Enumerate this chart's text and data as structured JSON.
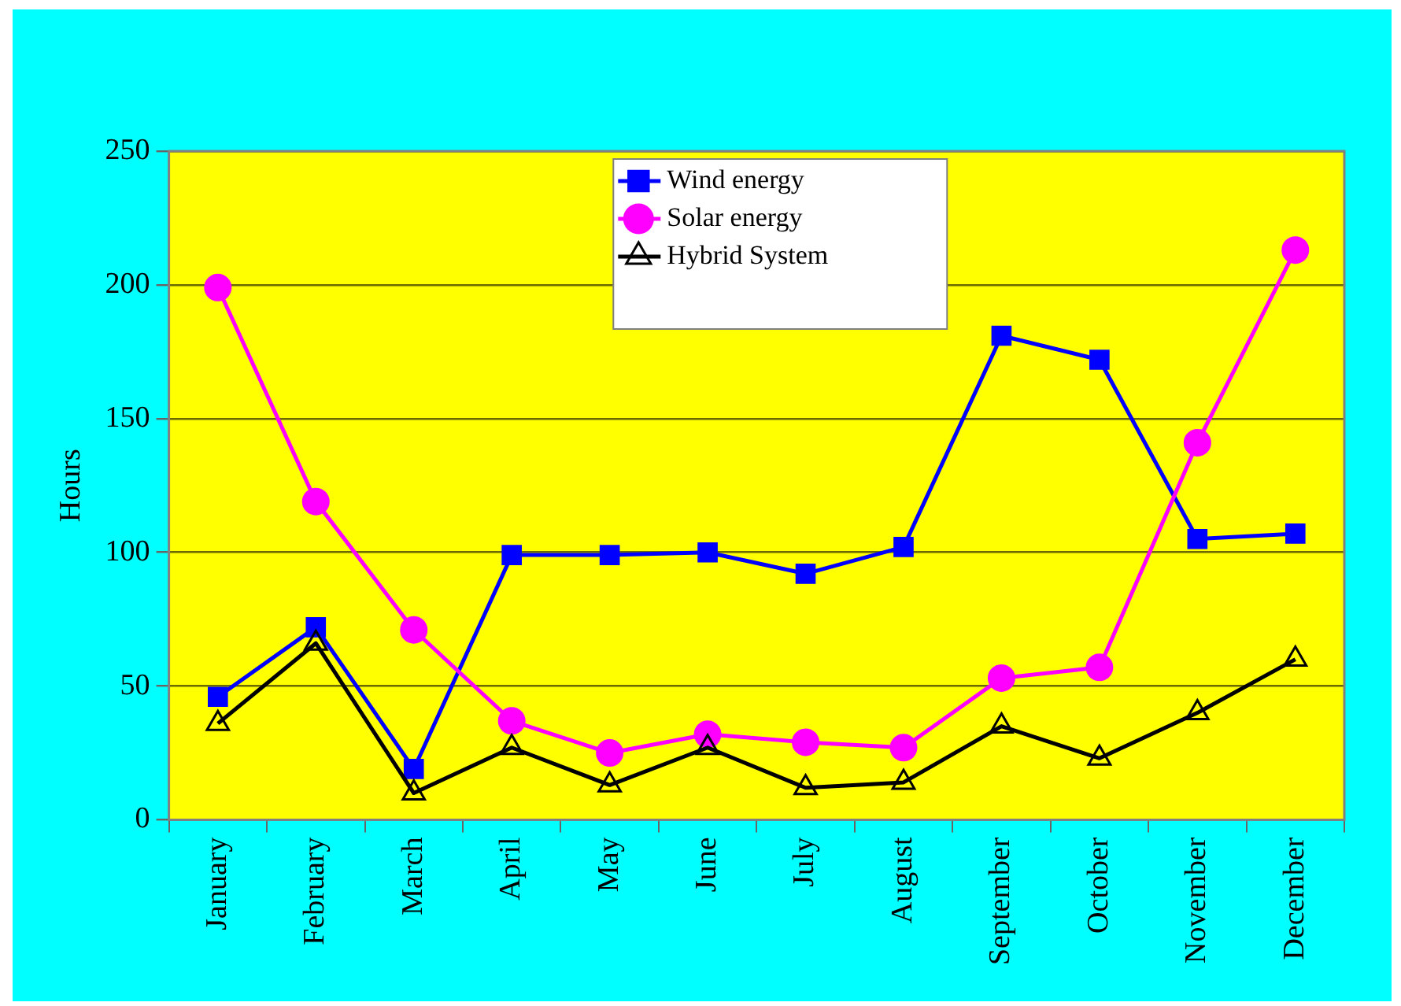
{
  "chart_data": {
    "type": "line",
    "ylabel": "Hours",
    "categories": [
      "January",
      "February",
      "March",
      "April",
      "May",
      "June",
      "July",
      "August",
      "September",
      "October",
      "November",
      "December"
    ],
    "series": [
      {
        "name": "Wind energy",
        "color": "#0000ff",
        "marker": "square",
        "values": [
          46,
          72,
          19,
          99,
          99,
          100,
          92,
          102,
          181,
          172,
          105,
          107
        ]
      },
      {
        "name": "Solar energy",
        "color": "#ff00ff",
        "marker": "circle",
        "values": [
          199,
          119,
          71,
          37,
          25,
          32,
          29,
          27,
          53,
          57,
          141,
          213
        ]
      },
      {
        "name": "Hybrid System",
        "color": "#000000",
        "marker": "triangle",
        "values": [
          36,
          66,
          10,
          27,
          13,
          27,
          12,
          14,
          35,
          23,
          40,
          60
        ]
      }
    ],
    "ylim": [
      0,
      250
    ],
    "yticks": [
      0,
      50,
      100,
      150,
      200,
      250
    ],
    "grid": "y",
    "legend": "top",
    "line_style": "solid"
  }
}
